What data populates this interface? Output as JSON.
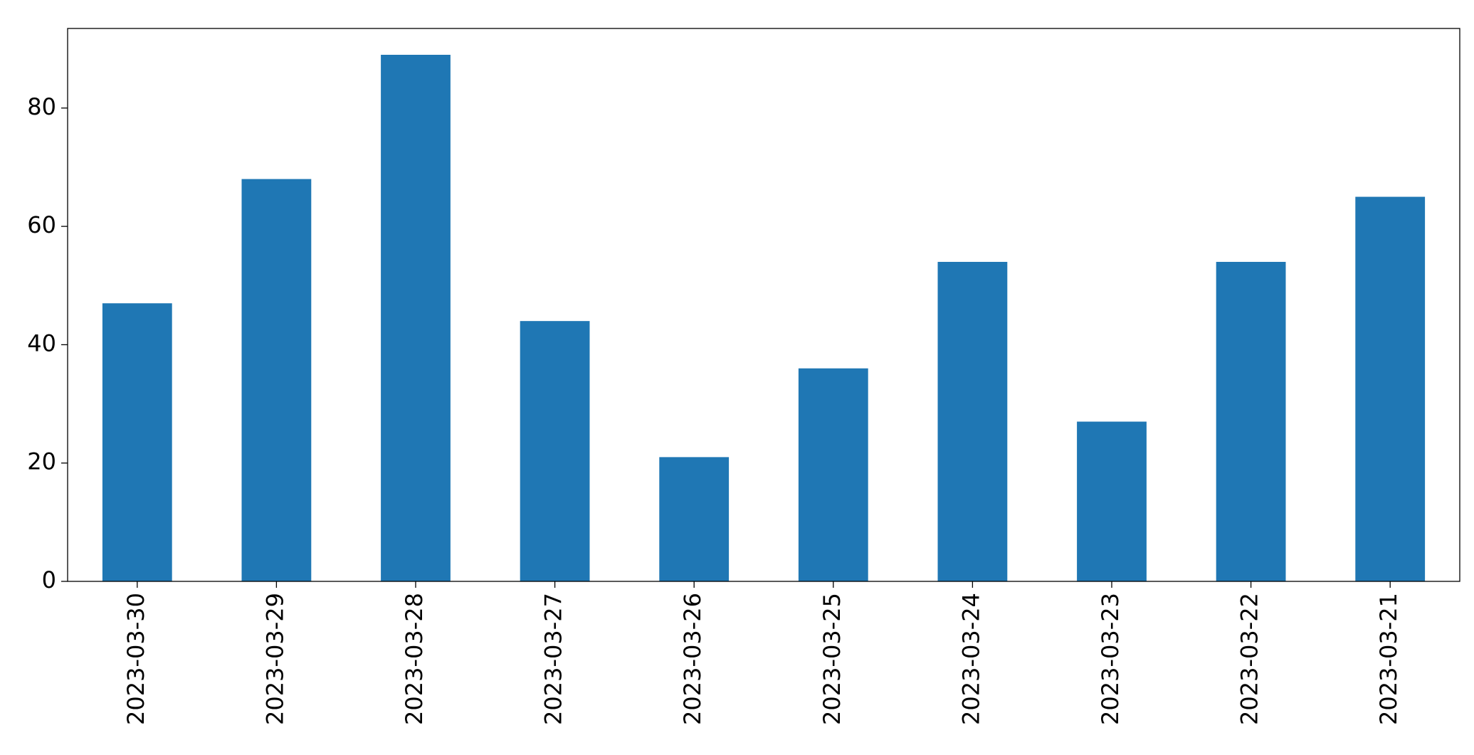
{
  "chart_data": {
    "type": "bar",
    "categories": [
      "2023-03-30",
      "2023-03-29",
      "2023-03-28",
      "2023-03-27",
      "2023-03-26",
      "2023-03-25",
      "2023-03-24",
      "2023-03-23",
      "2023-03-22",
      "2023-03-21"
    ],
    "values": [
      47,
      68,
      89,
      44,
      21,
      36,
      54,
      27,
      54,
      65
    ],
    "color": "#1f77b4",
    "ylim": [
      0,
      93.45
    ],
    "yticks": [
      0,
      20,
      40,
      60,
      80
    ],
    "grid": false
  }
}
